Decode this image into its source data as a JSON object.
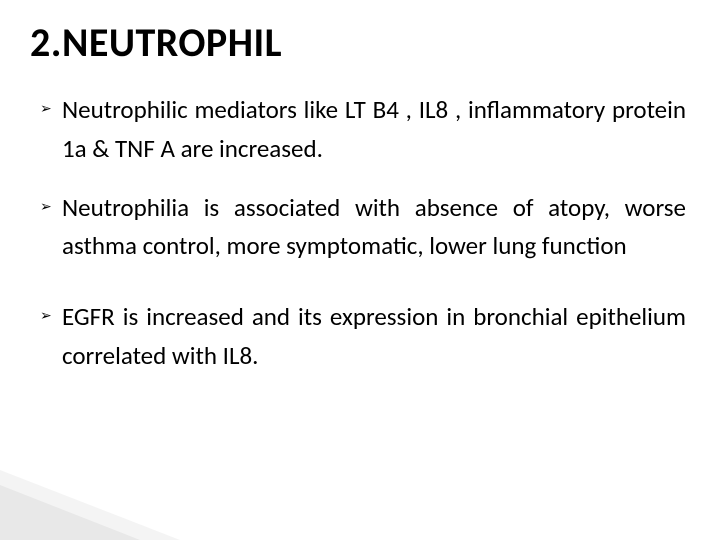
{
  "title": {
    "number": "2.",
    "word": "NEUTROPHIL"
  },
  "bullets": {
    "glyph": "➢",
    "items": [
      "Neutrophilic mediators like LT B4 , IL8 , inflammatory protein 1a & TNF A are increased.",
      "Neutrophilia is associated with absence of atopy, worse asthma control, more symptomatic, lower lung function",
      "EGFR is increased and  its expression in bronchial epithelium correlated with IL8."
    ]
  },
  "colors": {
    "background": "#ffffff",
    "text": "#000000",
    "bullet": "#000000"
  },
  "typography": {
    "title_fontsize": 40,
    "title_weight": 700,
    "body_fontsize": 25,
    "body_lineheight": 1.55,
    "font_family": "Calibri"
  }
}
